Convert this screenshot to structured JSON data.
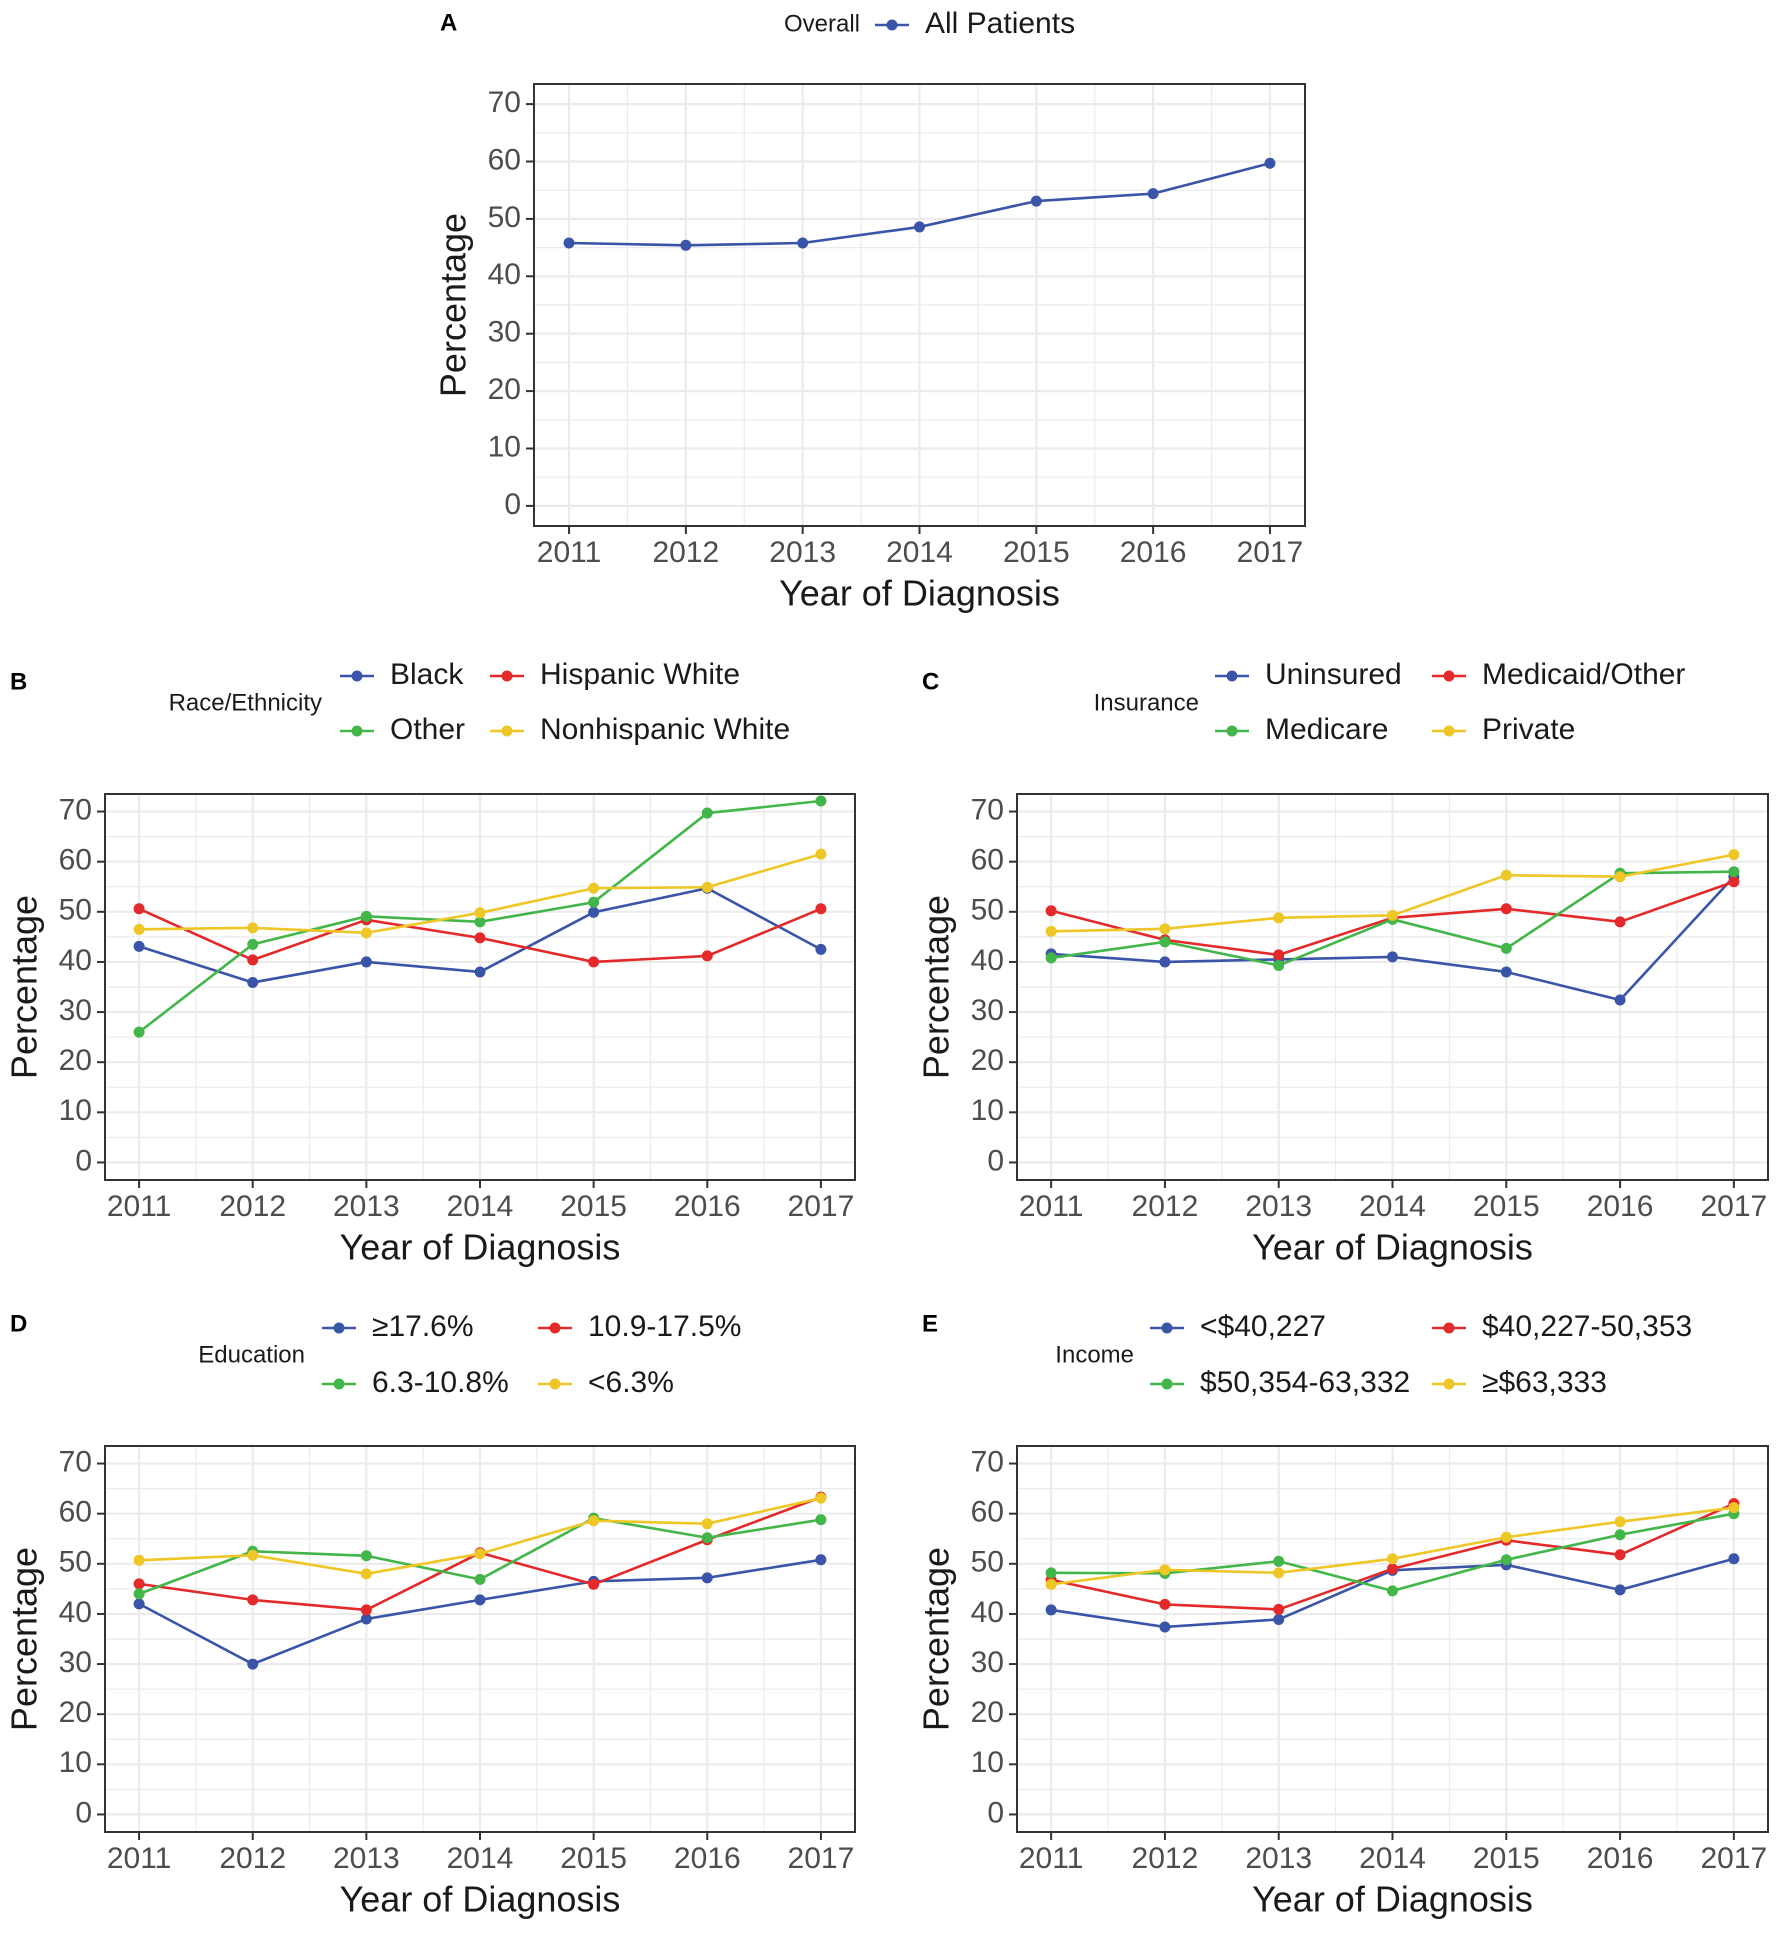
{
  "colors": {
    "blue": "#3a55a8",
    "red": "#e3292a",
    "green": "#42b649",
    "yellow": "#eec625",
    "grid": "#ebebeb",
    "border": "#333333"
  },
  "chart_data": [
    {
      "panel": "A",
      "type": "line",
      "legend_title": "Overall",
      "xlabel": "Year of Diagnosis",
      "ylabel": "Percentage",
      "x": [
        2011,
        2012,
        2013,
        2014,
        2015,
        2016,
        2017
      ],
      "ylim": [
        0,
        70
      ],
      "yticks": [
        0,
        10,
        20,
        30,
        40,
        50,
        60,
        70
      ],
      "series": [
        {
          "name": "All Patients",
          "color": "blue",
          "values": [
            45.8,
            45.4,
            45.8,
            48.6,
            53.1,
            54.4,
            59.7
          ]
        }
      ]
    },
    {
      "panel": "B",
      "type": "line",
      "legend_title": "Race/Ethnicity",
      "xlabel": "Year of Diagnosis",
      "ylabel": "Percentage",
      "x": [
        2011,
        2012,
        2013,
        2014,
        2015,
        2016,
        2017
      ],
      "ylim": [
        0,
        70
      ],
      "yticks": [
        0,
        10,
        20,
        30,
        40,
        50,
        60,
        70
      ],
      "series": [
        {
          "name": "Black",
          "color": "blue",
          "values": [
            43.1,
            35.9,
            40.0,
            38.0,
            49.9,
            54.7,
            42.5
          ]
        },
        {
          "name": "Hispanic White",
          "color": "red",
          "values": [
            50.6,
            40.4,
            48.4,
            44.8,
            40.0,
            41.2,
            50.6
          ]
        },
        {
          "name": "Other",
          "color": "green",
          "values": [
            26.0,
            43.5,
            49.1,
            48.0,
            51.9,
            69.7,
            72.1
          ]
        },
        {
          "name": "Nonhispanic White",
          "color": "yellow",
          "values": [
            46.5,
            46.8,
            45.8,
            49.8,
            54.7,
            54.9,
            61.5
          ]
        }
      ]
    },
    {
      "panel": "C",
      "type": "line",
      "legend_title": "Insurance",
      "xlabel": "Year of Diagnosis",
      "ylabel": "Percentage",
      "x": [
        2011,
        2012,
        2013,
        2014,
        2015,
        2016,
        2017
      ],
      "ylim": [
        0,
        70
      ],
      "yticks": [
        0,
        10,
        20,
        30,
        40,
        50,
        60,
        70
      ],
      "series": [
        {
          "name": "Uninsured",
          "color": "blue",
          "values": [
            41.6,
            40.0,
            40.5,
            41.0,
            38.0,
            32.4,
            57.0
          ]
        },
        {
          "name": "Medicaid/Other",
          "color": "red",
          "values": [
            50.2,
            44.4,
            41.4,
            48.8,
            50.6,
            48.0,
            56.0
          ]
        },
        {
          "name": "Medicare",
          "color": "green",
          "values": [
            40.8,
            44.0,
            39.3,
            48.5,
            42.7,
            57.7,
            58.0
          ]
        },
        {
          "name": "Private",
          "color": "yellow",
          "values": [
            46.1,
            46.6,
            48.8,
            49.3,
            57.3,
            57.0,
            61.4
          ]
        }
      ]
    },
    {
      "panel": "D",
      "type": "line",
      "legend_title": "Education",
      "xlabel": "Year of Diagnosis",
      "ylabel": "Percentage",
      "x": [
        2011,
        2012,
        2013,
        2014,
        2015,
        2016,
        2017
      ],
      "ylim": [
        0,
        70
      ],
      "yticks": [
        0,
        10,
        20,
        30,
        40,
        50,
        60,
        70
      ],
      "series": [
        {
          "name": "≥17.6%",
          "color": "blue",
          "values": [
            42.0,
            30.0,
            39.0,
            42.8,
            46.5,
            47.2,
            50.8
          ]
        },
        {
          "name": "10.9-17.5%",
          "color": "red",
          "values": [
            46.0,
            42.8,
            40.8,
            52.2,
            45.9,
            54.8,
            63.3
          ]
        },
        {
          "name": "6.3-10.8%",
          "color": "green",
          "values": [
            44.0,
            52.5,
            51.6,
            46.9,
            59.1,
            55.2,
            58.8
          ]
        },
        {
          "name": "<6.3%",
          "color": "yellow",
          "values": [
            50.7,
            51.7,
            48.0,
            52.0,
            58.6,
            58.0,
            63.1
          ]
        }
      ]
    },
    {
      "panel": "E",
      "type": "line",
      "legend_title": "Income",
      "xlabel": "Year of Diagnosis",
      "ylabel": "Percentage",
      "x": [
        2011,
        2012,
        2013,
        2014,
        2015,
        2016,
        2017
      ],
      "ylim": [
        0,
        70
      ],
      "yticks": [
        0,
        10,
        20,
        30,
        40,
        50,
        60,
        70
      ],
      "series": [
        {
          "name": "<$40,227",
          "color": "blue",
          "values": [
            40.8,
            37.4,
            38.9,
            48.7,
            49.8,
            44.8,
            51.0
          ]
        },
        {
          "name": "$40,227-50,353",
          "color": "red",
          "values": [
            46.8,
            41.9,
            40.9,
            49.0,
            54.7,
            51.8,
            62.0
          ]
        },
        {
          "name": "$50,354-63,332",
          "color": "green",
          "values": [
            48.2,
            48.1,
            50.5,
            44.6,
            50.8,
            55.8,
            60.0
          ]
        },
        {
          "name": "≥$63,333",
          "color": "yellow",
          "values": [
            45.9,
            48.8,
            48.2,
            51.0,
            55.3,
            58.4,
            61.2
          ]
        }
      ]
    }
  ]
}
